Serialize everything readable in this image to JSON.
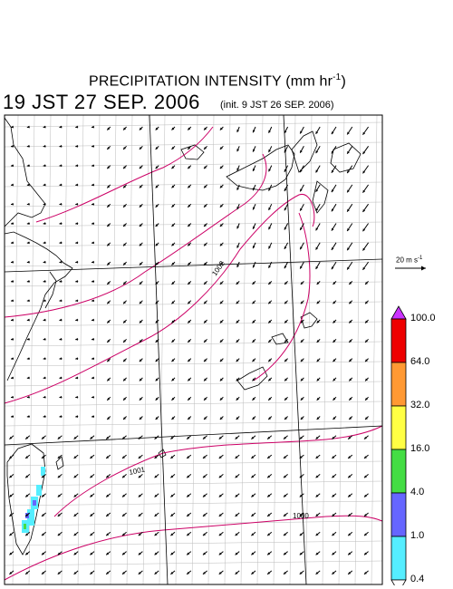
{
  "header": {
    "title_prefix": "PRECIPITATION INTENSITY (mm hr",
    "title_sup": "-1",
    "title_suffix": ")",
    "valid_time": "19 JST 27 SEP. 2006",
    "init_time": "(init. 9 JST 26 SEP. 2006)"
  },
  "wind_scale": {
    "label_prefix": "20 m s",
    "label_sup": "-1"
  },
  "colorbar": {
    "labels": [
      "100.0",
      "64.0",
      "32.0",
      "16.0",
      "4.0",
      "1.0",
      "0.4"
    ],
    "colors": [
      "#cc33ff",
      "#ee0000",
      "#ff9933",
      "#ffff44",
      "#44dd44",
      "#6666ff",
      "#55eeff",
      "#ffffff"
    ]
  },
  "contours": {
    "color": "#cc0066",
    "labels": [
      "1002",
      "1001",
      "1000"
    ]
  },
  "map": {
    "precip_color": "#55eeff",
    "precip_color_2": "#6666ff",
    "precip_color_3": "#44dd44"
  }
}
